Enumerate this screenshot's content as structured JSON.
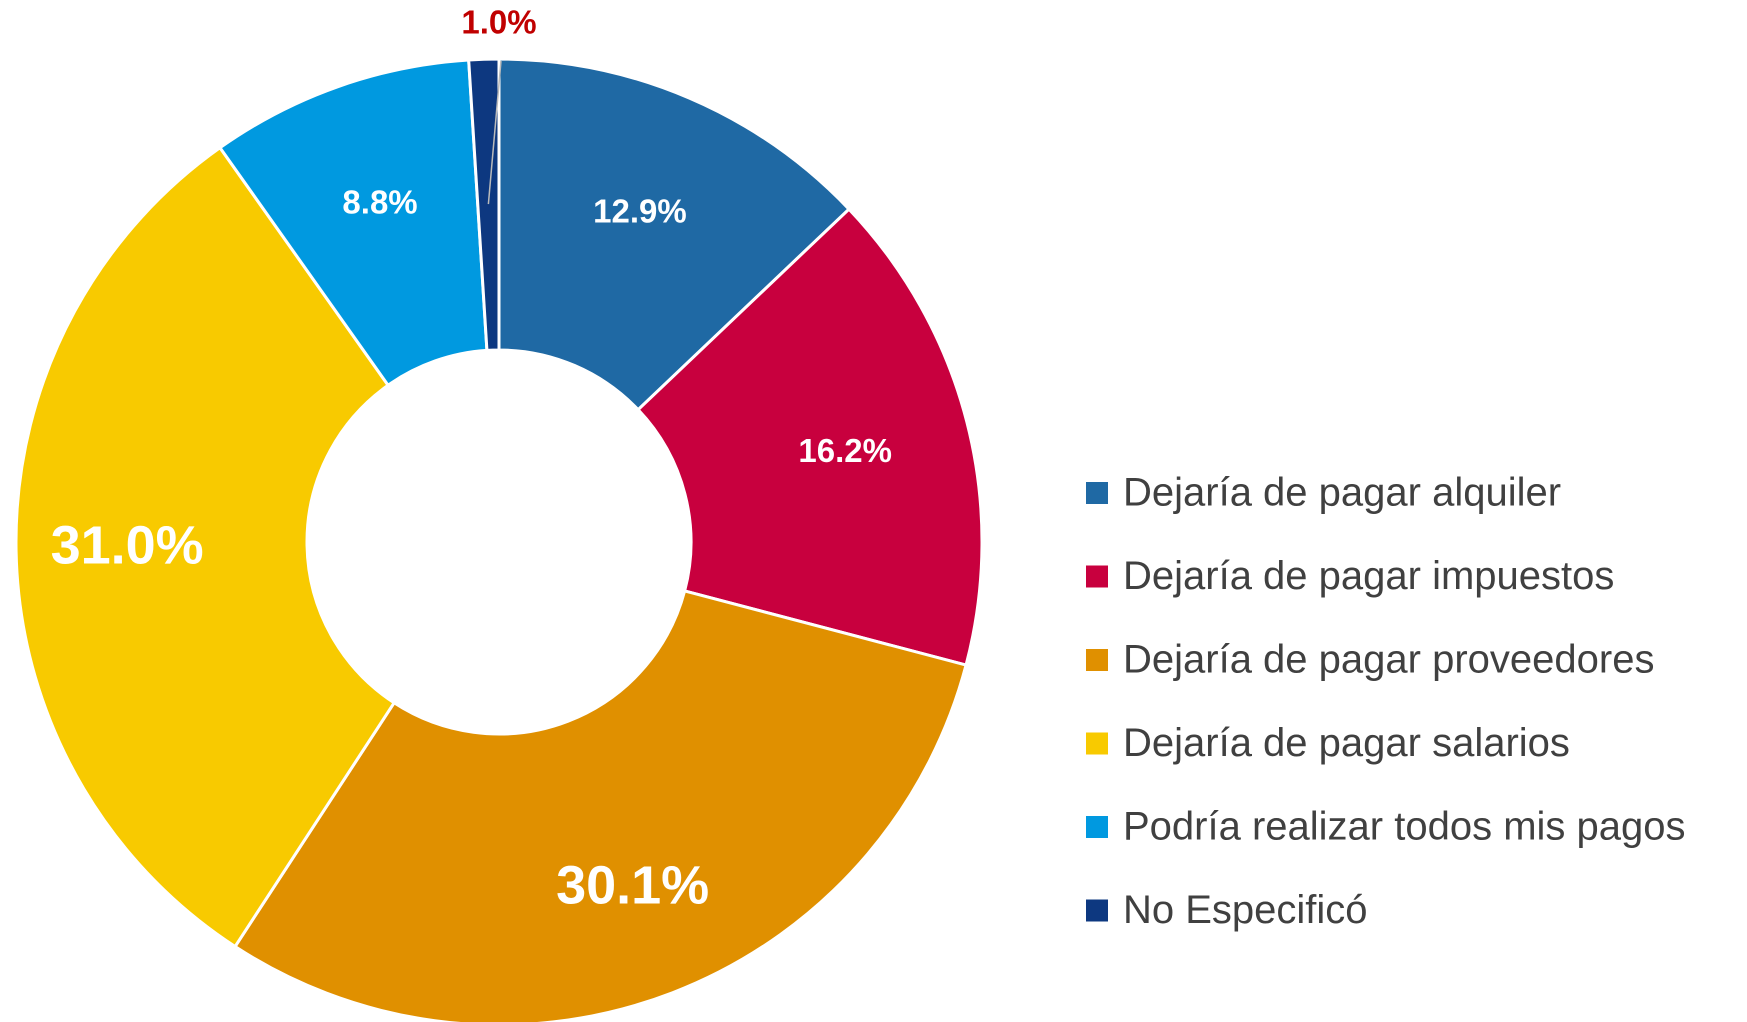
{
  "chart_data": {
    "type": "pie",
    "categories": [
      "Dejaría de pagar alquiler",
      "Dejaría de pagar impuestos",
      "Dejaría de pagar proveedores",
      "Dejaría de pagar salarios",
      "Podría realizar todos mis pagos",
      "No Especificó"
    ],
    "values": [
      12.9,
      16.2,
      30.1,
      31.0,
      8.8,
      1.0
    ],
    "value_labels": [
      "12.9%",
      "16.2%",
      "30.1%",
      "31.0%",
      "8.8%",
      "1.0%"
    ],
    "colors": [
      "#1f69a4",
      "#c8003e",
      "#e09000",
      "#f8ca00",
      "#0099e0",
      "#0d3880"
    ],
    "legend": "right"
  }
}
